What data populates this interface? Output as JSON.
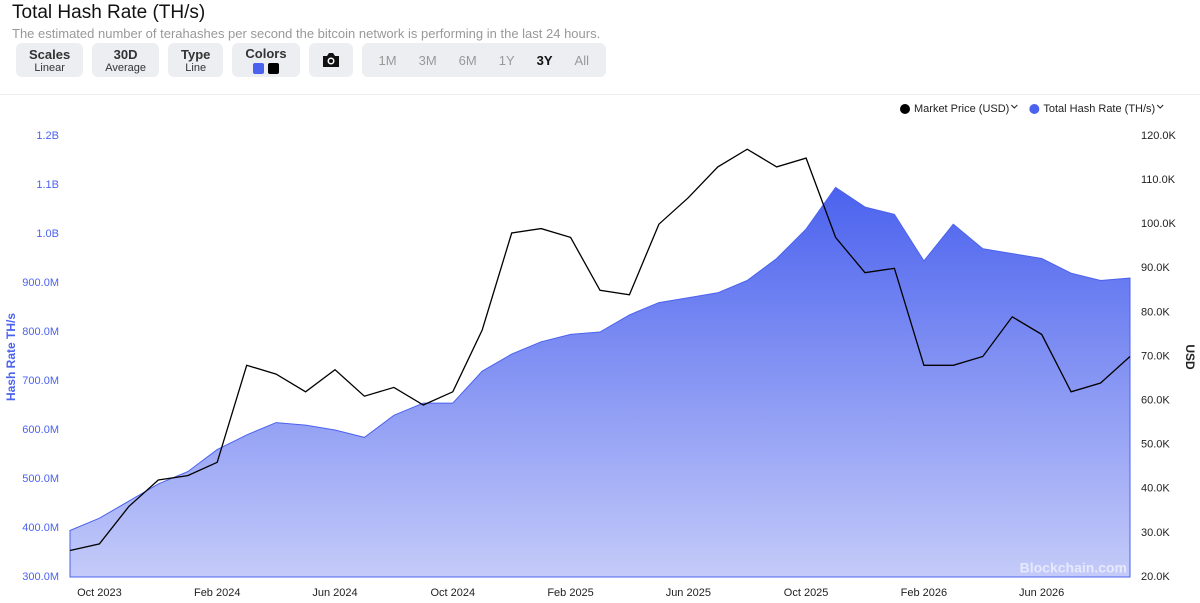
{
  "toolbar": {
    "buttons": [
      {
        "label": "Scales",
        "value": "Linear"
      },
      {
        "label": "30D",
        "value": "Average"
      },
      {
        "label": "Type",
        "value": "Line"
      }
    ],
    "colors_label": "Colors",
    "ranges": [
      "1M",
      "3M",
      "6M",
      "1Y",
      "3Y",
      "All"
    ],
    "active_range": "3Y"
  },
  "chart_data": {
    "type": "area-line",
    "title": "Total Hash Rate (TH/s)",
    "subtitle": "The estimated number of terahashes per second the bitcoin network is performing in the last 24 hours.",
    "ylabel": "Hash Rate TH/s",
    "y2label": "USD",
    "watermark": "Blockchain.com",
    "x": [
      "2023-09",
      "2023-10",
      "2023-11",
      "2023-12",
      "2024-01",
      "2024-02",
      "2024-03",
      "2024-04",
      "2024-05",
      "2024-06",
      "2024-07",
      "2024-08",
      "2024-09",
      "2024-10",
      "2024-11",
      "2024-12",
      "2025-01",
      "2025-02",
      "2025-03",
      "2025-04",
      "2025-05",
      "2025-06",
      "2025-07",
      "2025-08",
      "2025-09",
      "2025-10",
      "2025-11",
      "2025-12",
      "2026-01",
      "2026-02",
      "2026-03",
      "2026-04",
      "2026-05",
      "2026-06",
      "2026-07",
      "2026-08",
      "2026-09"
    ],
    "xlim": [
      "2023-09",
      "2026-09"
    ],
    "xticks": [
      {
        "value": "2023-10",
        "label": "Oct 2023"
      },
      {
        "value": "2024-02",
        "label": "Feb 2024"
      },
      {
        "value": "2024-06",
        "label": "Jun 2024"
      },
      {
        "value": "2024-10",
        "label": "Oct 2024"
      },
      {
        "value": "2025-02",
        "label": "Feb 2025"
      },
      {
        "value": "2025-06",
        "label": "Jun 2025"
      },
      {
        "value": "2025-10",
        "label": "Oct 2025"
      },
      {
        "value": "2026-02",
        "label": "Feb 2026"
      },
      {
        "value": "2026-06",
        "label": "Jun 2026"
      }
    ],
    "ylim": [
      300000000,
      1200000000
    ],
    "yticks": [
      {
        "value": 300000000,
        "label": "300.0M"
      },
      {
        "value": 400000000,
        "label": "400.0M"
      },
      {
        "value": 500000000,
        "label": "500.0M"
      },
      {
        "value": 600000000,
        "label": "600.0M"
      },
      {
        "value": 700000000,
        "label": "700.0M"
      },
      {
        "value": 800000000,
        "label": "800.0M"
      },
      {
        "value": 900000000,
        "label": "900.0M"
      },
      {
        "value": 1000000000,
        "label": "1.0B"
      },
      {
        "value": 1100000000,
        "label": "1.1B"
      },
      {
        "value": 1200000000,
        "label": "1.2B"
      }
    ],
    "y2lim": [
      20000,
      120000
    ],
    "y2ticks": [
      {
        "value": 20000,
        "label": "20.0K"
      },
      {
        "value": 30000,
        "label": "30.0K"
      },
      {
        "value": 40000,
        "label": "40.0K"
      },
      {
        "value": 50000,
        "label": "50.0K"
      },
      {
        "value": 60000,
        "label": "60.0K"
      },
      {
        "value": 70000,
        "label": "70.0K"
      },
      {
        "value": 80000,
        "label": "80.0K"
      },
      {
        "value": 90000,
        "label": "90.0K"
      },
      {
        "value": 100000,
        "label": "100.0K"
      },
      {
        "value": 110000,
        "label": "110.0K"
      },
      {
        "value": 120000,
        "label": "120.0K"
      }
    ],
    "legend": "top-right",
    "series": [
      {
        "name": "Market Price (USD)",
        "color": "#000000",
        "axis": "y2",
        "kind": "line",
        "values": [
          26000,
          27500,
          36000,
          42000,
          43000,
          46000,
          68000,
          66000,
          62000,
          67000,
          61000,
          63000,
          59000,
          62000,
          76000,
          98000,
          99000,
          97000,
          85000,
          84000,
          100000,
          106000,
          113000,
          117000,
          113000,
          115000,
          97000,
          89000,
          90000,
          68000,
          68000,
          70000,
          79000,
          75000,
          62000,
          64000,
          70000
        ]
      },
      {
        "name": "Total Hash Rate (TH/s)",
        "color": "#4b62ee",
        "axis": "y",
        "kind": "area",
        "values": [
          395000000,
          420000000,
          455000000,
          490000000,
          515000000,
          560000000,
          590000000,
          615000000,
          610000000,
          600000000,
          585000000,
          630000000,
          655000000,
          655000000,
          720000000,
          755000000,
          780000000,
          795000000,
          800000000,
          835000000,
          860000000,
          870000000,
          880000000,
          905000000,
          950000000,
          1010000000,
          1095000000,
          1055000000,
          1040000000,
          945000000,
          1020000000,
          970000000,
          960000000,
          950000000,
          920000000,
          905000000,
          910000000
        ]
      }
    ]
  }
}
